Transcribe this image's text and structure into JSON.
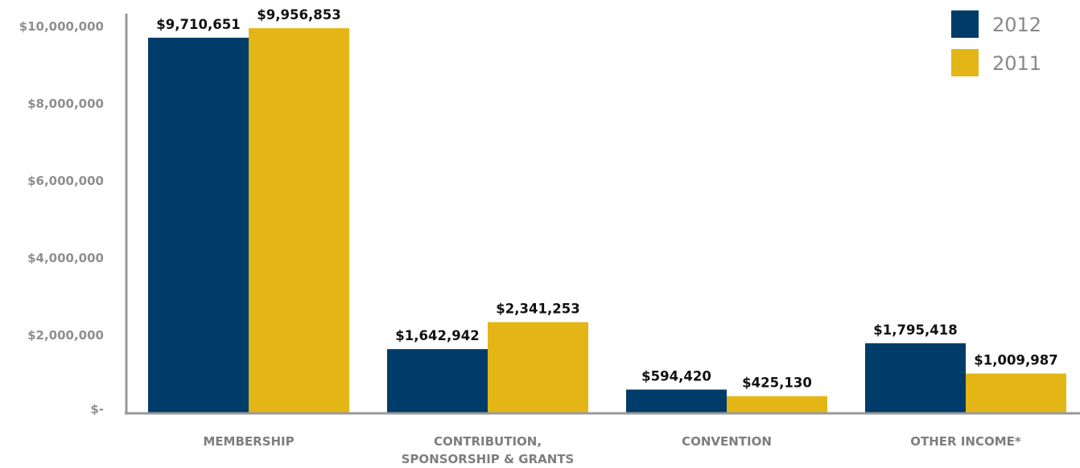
{
  "chart_data": {
    "type": "bar",
    "categories": [
      [
        "MEMBERSHIP"
      ],
      [
        "CONTRIBUTION,",
        "SPONSORSHIP & GRANTS"
      ],
      [
        "CONVENTION"
      ],
      [
        "OTHER INCOME*"
      ]
    ],
    "series": [
      {
        "name": "2012",
        "color": "#003C69",
        "values": [
          9710651,
          1642942,
          594420,
          1795418
        ],
        "labels": [
          "$9,710,651",
          "$1,642,942",
          "$594,420",
          "$1,795,418"
        ]
      },
      {
        "name": "2011",
        "color": "#E3B616",
        "values": [
          9956853,
          2341253,
          425130,
          1009987
        ],
        "labels": [
          "$9,956,853",
          "$2,341,253",
          "$425,130",
          "$1,009,987"
        ]
      }
    ],
    "ylim": [
      0,
      10000000
    ],
    "yticks": [
      {
        "value": 0,
        "label": "$-"
      },
      {
        "value": 2000000,
        "label": "$2,000,000"
      },
      {
        "value": 4000000,
        "label": "$4,000,000"
      },
      {
        "value": 6000000,
        "label": "$6,000,000"
      },
      {
        "value": 8000000,
        "label": "$8,000,000"
      },
      {
        "value": 10000000,
        "label": "$10,000,000"
      }
    ],
    "title": "",
    "xlabel": "",
    "ylabel": "",
    "grid": false,
    "legend_position": "top-right",
    "axis_color": "#999999"
  }
}
